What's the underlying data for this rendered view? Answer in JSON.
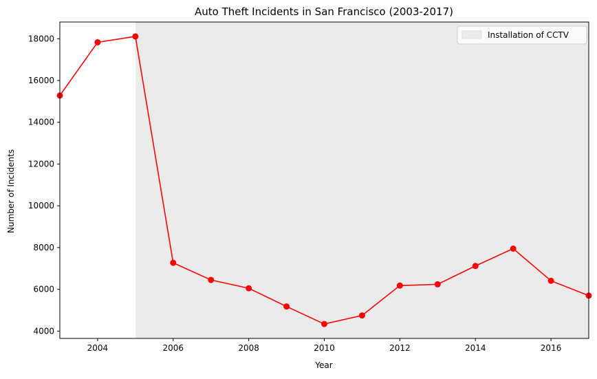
{
  "chart_data": {
    "type": "line",
    "title": "Auto Theft Incidents in San Francisco (2003-2017)",
    "xlabel": "Year",
    "ylabel": "Number of Incidents",
    "xlim": [
      2003,
      2017
    ],
    "ylim": [
      3650,
      18800
    ],
    "x_ticks": [
      2004,
      2006,
      2008,
      2010,
      2012,
      2014,
      2016
    ],
    "y_ticks": [
      4000,
      6000,
      8000,
      10000,
      12000,
      14000,
      16000,
      18000
    ],
    "grid": false,
    "legend_position": "top-right",
    "series": [
      {
        "color": "#ff0000",
        "marker": "circle",
        "x": [
          2003,
          2004,
          2005,
          2006,
          2007,
          2008,
          2009,
          2010,
          2011,
          2012,
          2013,
          2014,
          2015,
          2016,
          2017
        ],
        "values": [
          15280,
          17830,
          18110,
          7270,
          6450,
          6050,
          5180,
          4340,
          4750,
          6180,
          6240,
          7120,
          7950,
          6410,
          5700
        ]
      }
    ],
    "shaded_regions": [
      {
        "label": "Installation of CCTV",
        "x_start": 2005,
        "x_end": 2017,
        "color": "#ebebeb"
      }
    ]
  }
}
